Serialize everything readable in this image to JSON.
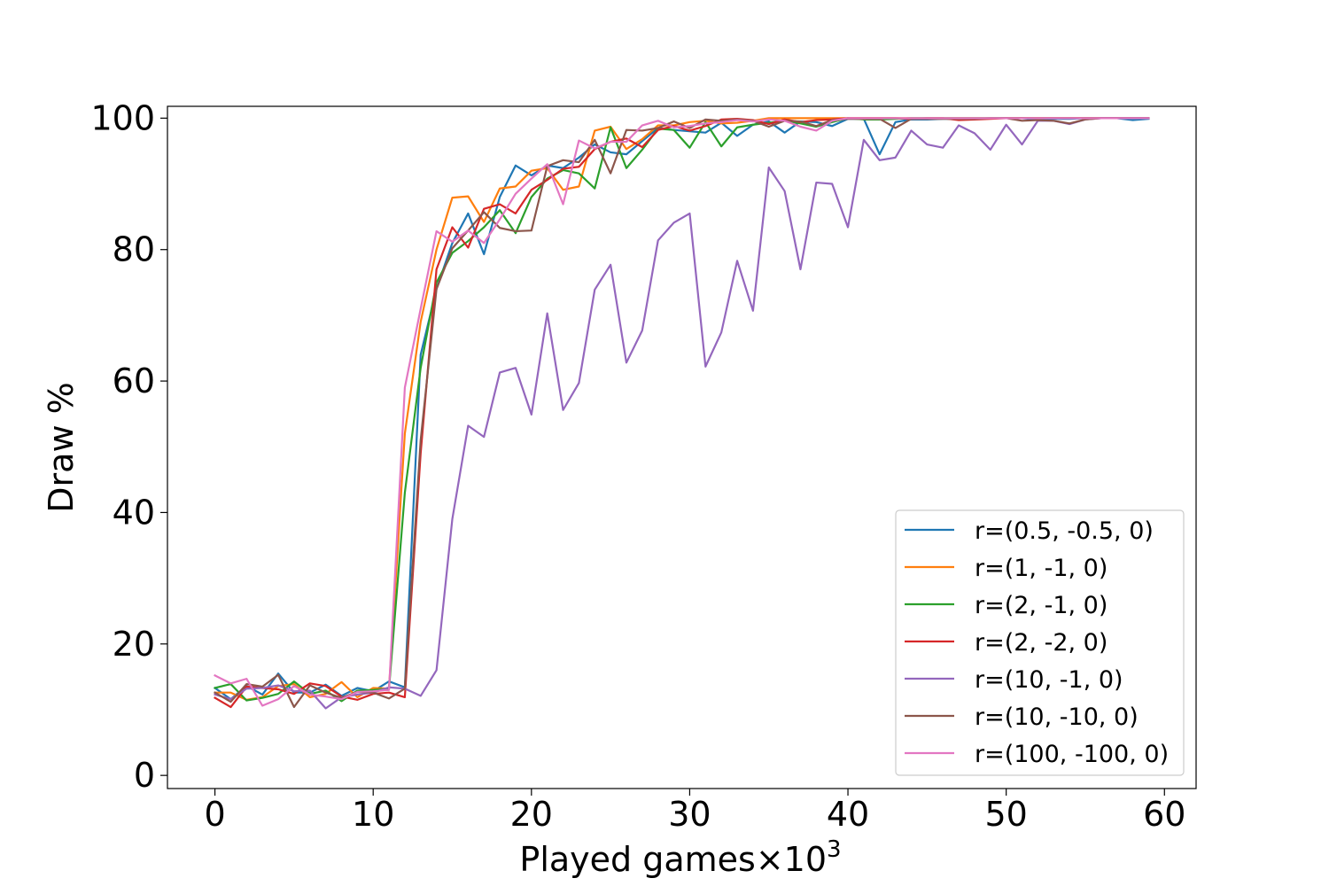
{
  "chart_data": {
    "type": "line",
    "title": "",
    "xlabel": "Played games×10",
    "xlabel_exponent": "3",
    "ylabel": "Draw %",
    "xlim": [
      -3,
      62
    ],
    "ylim": [
      -2,
      101.8
    ],
    "xticks": [
      0,
      10,
      20,
      30,
      40,
      50,
      60
    ],
    "yticks": [
      0,
      20,
      40,
      60,
      80,
      100
    ],
    "grid": false,
    "legend_position": "lower-right",
    "x": [
      0,
      1,
      2,
      3,
      4,
      5,
      6,
      7,
      8,
      9,
      10,
      11,
      12,
      13,
      14,
      15,
      16,
      17,
      18,
      19,
      20,
      21,
      22,
      23,
      24,
      25,
      26,
      27,
      28,
      29,
      30,
      31,
      32,
      33,
      34,
      35,
      36,
      37,
      38,
      39,
      40,
      41,
      42,
      43,
      44,
      45,
      46,
      47,
      48,
      49,
      50,
      51,
      52,
      53,
      54,
      55,
      56,
      57,
      58,
      59
    ],
    "series": [
      {
        "name": "r=(0.5, -0.5, 0)",
        "color": "#1f77b4",
        "values": [
          13.3,
          11.6,
          13.6,
          12.3,
          15.5,
          12.6,
          12.6,
          13.8,
          12.1,
          13.3,
          12.8,
          14.3,
          13.4,
          64,
          74,
          81,
          85.5,
          79.3,
          88,
          92.8,
          91.3,
          92.8,
          92.4,
          94,
          96,
          94.8,
          94.5,
          96.5,
          98.5,
          98.2,
          98,
          97.8,
          99.3,
          97.3,
          99,
          99.5,
          97.8,
          99.5,
          99.4,
          98.8,
          99.9,
          99.9,
          94.5,
          99.4,
          99.8,
          99.8,
          99.9,
          99.9,
          99.9,
          100,
          100,
          100,
          99.8,
          99.9,
          99.9,
          100,
          100,
          100,
          99.7,
          99.9
        ]
      },
      {
        "name": "r=(1, -1, 0)",
        "color": "#ff7f0e",
        "values": [
          12.6,
          12.6,
          11.5,
          11.9,
          13.6,
          13.9,
          11.9,
          12.4,
          14.2,
          11.9,
          13.3,
          13.2,
          52,
          69,
          80,
          87.9,
          88.1,
          84.2,
          89.3,
          89.6,
          92,
          92.4,
          89.1,
          89.6,
          98.1,
          98.7,
          95.3,
          96.8,
          98.9,
          98.9,
          99.4,
          99.6,
          99.2,
          99.3,
          99.6,
          100,
          100,
          100,
          100,
          100,
          100,
          100,
          100,
          100,
          100,
          100,
          100,
          100,
          100,
          100,
          100,
          100,
          100,
          100,
          100,
          100,
          100,
          100,
          100,
          100
        ]
      },
      {
        "name": "r=(2, -1, 0)",
        "color": "#2ca02c",
        "values": [
          13.3,
          13.9,
          11.4,
          11.8,
          12.4,
          14.3,
          12.4,
          12.9,
          11.3,
          12.9,
          13,
          13.2,
          43,
          62,
          75,
          79.5,
          81.3,
          83.4,
          86,
          82.5,
          88,
          90.8,
          92.1,
          91.6,
          89.3,
          98.6,
          92.4,
          95.2,
          98.4,
          98.2,
          95.5,
          99.4,
          95.7,
          98.6,
          99,
          99.3,
          99.6,
          99.2,
          98.7,
          99.4,
          100,
          99.8,
          99.8,
          99.9,
          100,
          100,
          100,
          100,
          100,
          100,
          100,
          100,
          100,
          100,
          100,
          100,
          100,
          100,
          100,
          100
        ]
      },
      {
        "name": "r=(2, -2, 0)",
        "color": "#d62728",
        "values": [
          11.8,
          10.4,
          13.5,
          13.3,
          13.1,
          12.4,
          14,
          13.6,
          12,
          11.5,
          12.4,
          12.6,
          11.9,
          49,
          77,
          83.4,
          80.3,
          86.2,
          86.9,
          85.5,
          89.1,
          90.6,
          92.3,
          92.6,
          95.3,
          96.4,
          96.9,
          95.6,
          98.2,
          98.8,
          98.1,
          98.8,
          99.8,
          99.9,
          99.7,
          99.1,
          99.8,
          99.4,
          99.7,
          99.8,
          100,
          100,
          100,
          100,
          99.9,
          100,
          100,
          99.7,
          99.8,
          99.9,
          100,
          100,
          100,
          100,
          100,
          100,
          100,
          100,
          100,
          100
        ]
      },
      {
        "name": "r=(10, -1, 0)",
        "color": "#9467bd",
        "values": [
          12.3,
          11.6,
          13.2,
          13.3,
          13.7,
          12.8,
          12.9,
          10.2,
          11.9,
          12.3,
          12.6,
          13.4,
          13.2,
          12.1,
          16,
          39,
          53.2,
          51.5,
          61.3,
          62,
          54.9,
          70.3,
          55.6,
          59.7,
          73.9,
          77.7,
          62.8,
          67.7,
          81.4,
          84.1,
          85.5,
          62.2,
          67.4,
          78.3,
          70.7,
          92.5,
          88.9,
          77,
          90.2,
          90,
          83.4,
          96.7,
          93.6,
          94,
          98.1,
          96,
          95.5,
          98.9,
          97.7,
          95.2,
          99,
          96,
          99.6,
          99.6,
          99.1,
          99.8,
          100,
          100,
          100,
          100
        ]
      },
      {
        "name": "r=(10, -10, 0)",
        "color": "#8c564b",
        "values": [
          12.6,
          11.2,
          13.9,
          13.5,
          15.3,
          10.4,
          13.7,
          12.6,
          11.8,
          12.7,
          12.6,
          11.7,
          13.2,
          51,
          74,
          80.2,
          82.9,
          85.7,
          83.3,
          82.8,
          82.9,
          92.7,
          93.6,
          93.3,
          96.7,
          91.6,
          98.2,
          98.1,
          98.5,
          99.5,
          98.5,
          99.8,
          99.6,
          99.8,
          99.6,
          98.7,
          99.6,
          99.5,
          98.8,
          99.7,
          99.9,
          99.9,
          99.9,
          98.5,
          99.9,
          99.9,
          99.9,
          99.9,
          99.9,
          100,
          100,
          99.6,
          99.7,
          99.6,
          99.2,
          99.8,
          100,
          100,
          100,
          100
        ]
      },
      {
        "name": "r=(100, -100, 0)",
        "color": "#e377c2",
        "values": [
          15.2,
          14,
          14.7,
          10.6,
          11.6,
          13.6,
          12.3,
          12,
          11.6,
          12.7,
          12.8,
          13,
          59,
          71,
          82.8,
          81.2,
          82.9,
          81,
          84.6,
          88.5,
          90.8,
          93,
          86.9,
          96.6,
          95.4,
          96.4,
          96.4,
          98.9,
          99.6,
          98.6,
          98.8,
          99.2,
          99.4,
          99.7,
          99.5,
          99.8,
          99.6,
          98.7,
          98.1,
          99.6,
          100,
          100,
          100,
          100,
          100,
          100,
          100,
          100,
          100,
          100,
          100,
          100,
          100,
          100,
          100,
          100,
          100,
          100,
          100,
          100
        ]
      }
    ]
  }
}
